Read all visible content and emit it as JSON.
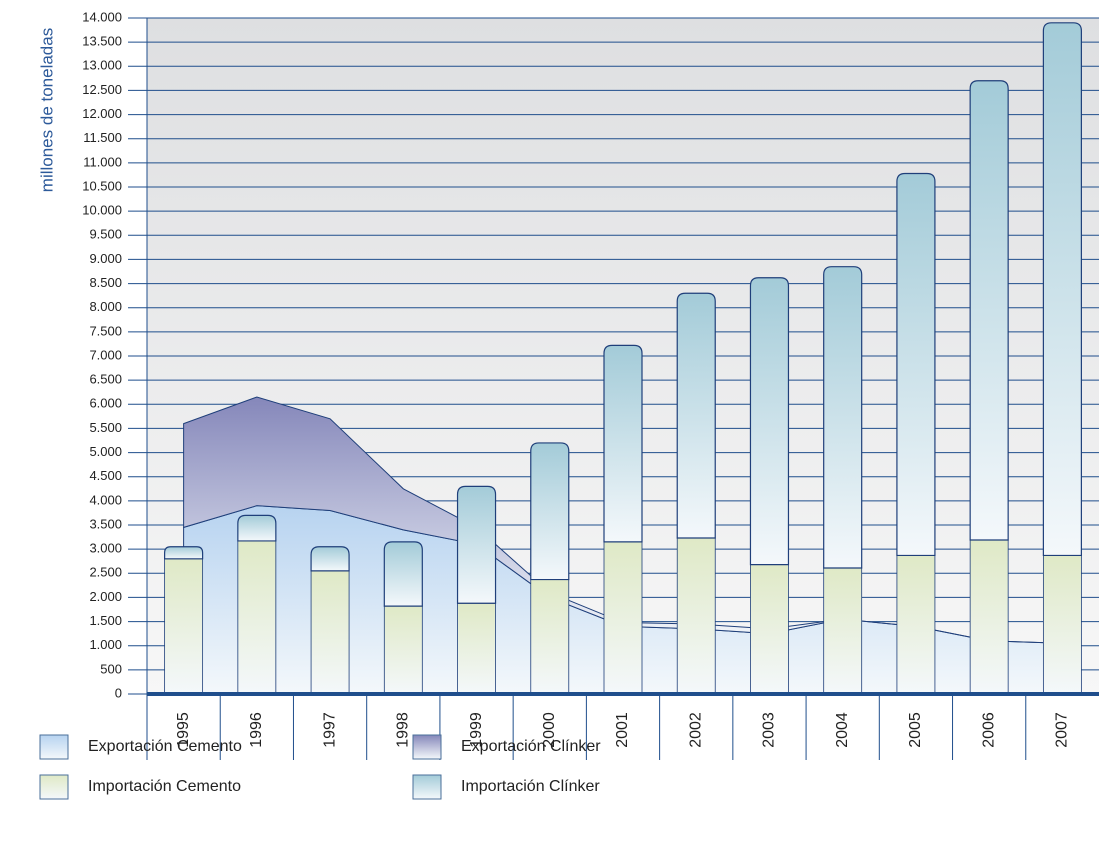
{
  "chart_data": {
    "type": "bar",
    "y_label": "millones de toneladas",
    "categories": [
      "1995",
      "1996",
      "1997",
      "1998",
      "1999",
      "2000",
      "2001",
      "2002",
      "2003",
      "2004",
      "2005",
      "2006",
      "2007"
    ],
    "series": [
      {
        "name": "Exportación Cemento",
        "type": "area",
        "color": "#b7d3f0",
        "values": [
          3450,
          3900,
          3800,
          3400,
          3100,
          2000,
          1400,
          1350,
          1250,
          1550,
          1400,
          1100,
          1050
        ]
      },
      {
        "name": "Exportación Clínker",
        "type": "area",
        "color": "#8587ba",
        "values": [
          2150,
          2250,
          1900,
          850,
          350,
          100,
          80,
          100,
          100,
          0,
          0,
          0,
          0
        ]
      },
      {
        "name": "Importación Cemento",
        "type": "bar",
        "color": "#dfe9c6",
        "values": [
          2800,
          3170,
          2550,
          1820,
          1880,
          2370,
          3150,
          3230,
          2680,
          2610,
          2870,
          3190,
          2870
        ]
      },
      {
        "name": "Importación Clínker",
        "type": "bar",
        "color": "#a3cbd8",
        "values": [
          250,
          530,
          500,
          1330,
          2420,
          2830,
          4070,
          5070,
          5940,
          6240,
          7910,
          9510,
          11030
        ]
      }
    ],
    "ylim": [
      0,
      14000
    ],
    "yticks": [
      0,
      500,
      {
        "value": 1000,
        "label": "1.000"
      },
      {
        "value": 1500,
        "label": "1.500"
      },
      {
        "value": 2000,
        "label": "2.000"
      },
      {
        "value": 2500,
        "label": "2.500"
      },
      {
        "value": 3000,
        "label": "3.000"
      },
      {
        "value": 3500,
        "label": "3.500"
      },
      {
        "value": 4000,
        "label": "4.000"
      },
      {
        "value": 4500,
        "label": "4.500"
      },
      {
        "value": 5000,
        "label": "5.000"
      },
      {
        "value": 5500,
        "label": "5.500"
      },
      {
        "value": 6000,
        "label": "6.000"
      },
      {
        "value": 6500,
        "label": "6.500"
      },
      {
        "value": 7000,
        "label": "7.000"
      },
      {
        "value": 7500,
        "label": "7.500"
      },
      {
        "value": 8000,
        "label": "8.000"
      },
      {
        "value": 8500,
        "label": "8.500"
      },
      {
        "value": 9000,
        "label": "9.000"
      },
      {
        "value": 9500,
        "label": "9.500"
      },
      {
        "value": 10000,
        "label": "10.000"
      },
      {
        "value": 10500,
        "label": "10.500"
      },
      {
        "value": 11000,
        "label": "11.000"
      },
      {
        "value": 11500,
        "label": "11.500"
      },
      {
        "value": 12000,
        "label": "12.000"
      },
      {
        "value": 12500,
        "label": "12.500"
      },
      {
        "value": 13000,
        "label": "13.000"
      },
      {
        "value": 13500,
        "label": "13.500"
      },
      {
        "value": 14000,
        "label": "14.000"
      }
    ],
    "grid": true
  }
}
